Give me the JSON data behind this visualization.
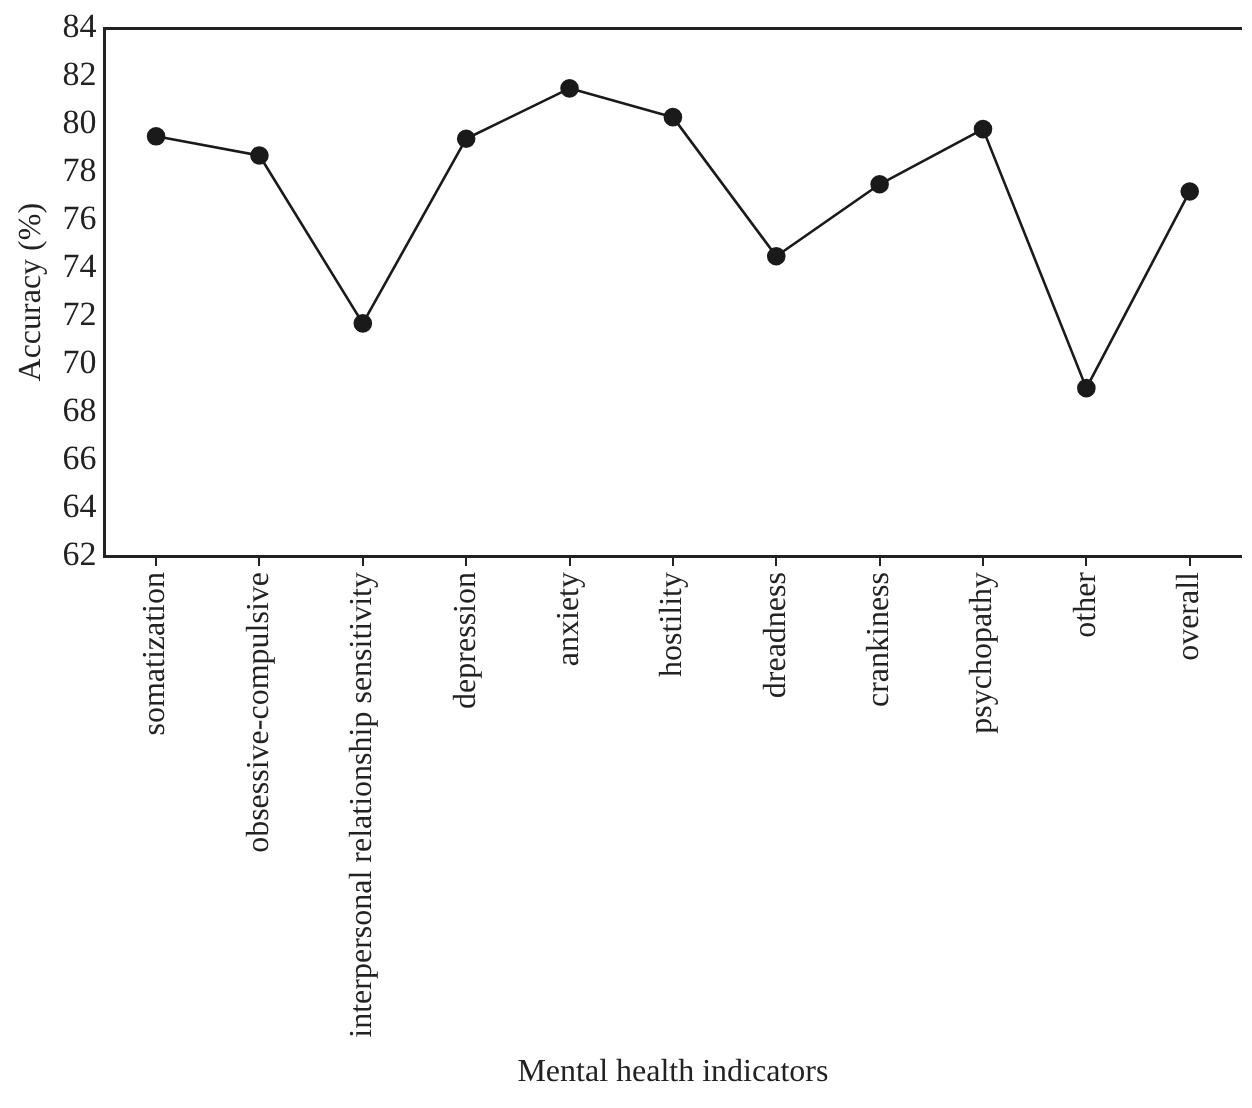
{
  "chart_data": {
    "type": "line",
    "xlabel": "Mental health indicators",
    "ylabel": "Accuracy (%)",
    "categories": [
      "somatization",
      "obsessive-compulsive",
      "interpersonal relationship sensitivity",
      "depression",
      "anxiety",
      "hostility",
      "dreadness",
      "crankiness",
      "psychopathy",
      "other",
      "overall"
    ],
    "series": [
      {
        "color": "#1a1a1a",
        "values": [
          79.5,
          78.7,
          71.7,
          79.4,
          81.5,
          80.3,
          74.5,
          77.5,
          79.8,
          69.0,
          77.2
        ]
      }
    ],
    "ylim": [
      62,
      84
    ],
    "yticks": [
      62,
      64,
      66,
      68,
      70,
      72,
      74,
      76,
      78,
      80,
      82,
      84
    ],
    "grid": false,
    "legend": false,
    "marker": "circle",
    "line_style": "solid"
  }
}
